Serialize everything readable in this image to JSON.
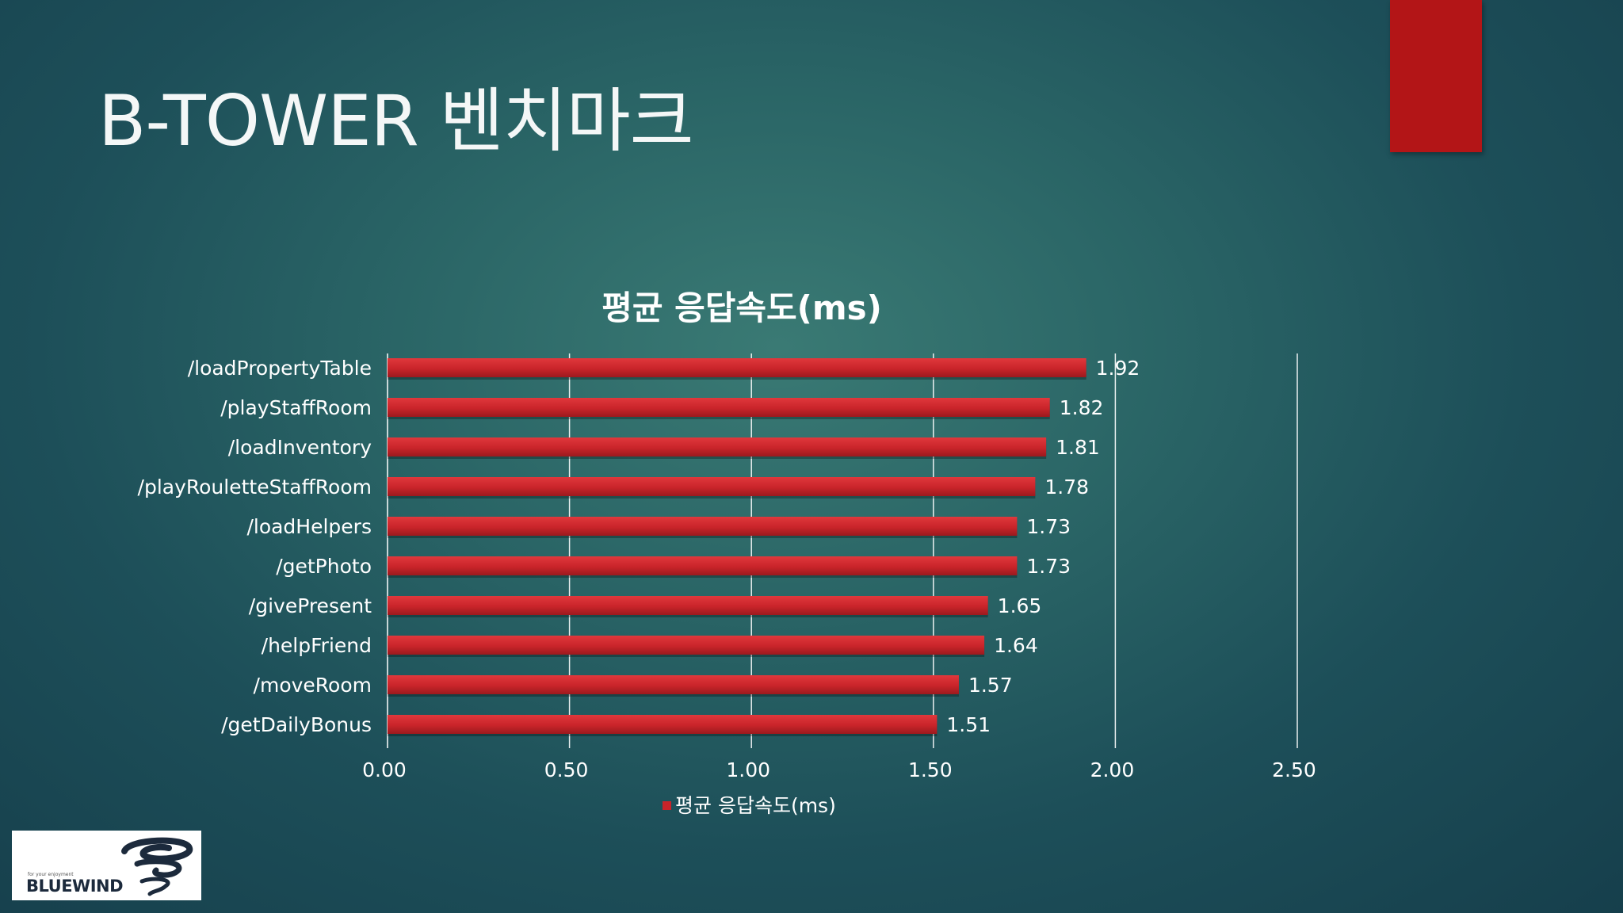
{
  "slide": {
    "title": "B-TOWER 벤치마크"
  },
  "logo": {
    "tagline": "for your enjoyment",
    "name": "BLUEWIND"
  },
  "colors": {
    "bar": "#c9242a",
    "accent": "#b31517",
    "gridline": "#ffffff",
    "text": "#ffffff"
  },
  "chart_data": {
    "type": "bar",
    "orientation": "horizontal",
    "title": "평균 응답속도(ms)",
    "categories": [
      "/loadPropertyTable",
      "/playStaffRoom",
      "/loadInventory",
      "/playRouletteStaffRoom",
      "/loadHelpers",
      "/getPhoto",
      "/givePresent",
      "/helpFriend",
      "/moveRoom",
      "/getDailyBonus"
    ],
    "series": [
      {
        "name": "평균 응답속도(ms)",
        "values": [
          1.92,
          1.82,
          1.81,
          1.78,
          1.73,
          1.73,
          1.65,
          1.64,
          1.57,
          1.51
        ],
        "labels": [
          "1.92",
          "1.82",
          "1.81",
          "1.78",
          "1.73",
          "1.73",
          "1.65",
          "1.64",
          "1.57",
          "1.51"
        ]
      }
    ],
    "xlim": [
      0,
      2.5
    ],
    "xticks": [
      0,
      0.5,
      1.0,
      1.5,
      2.0,
      2.5
    ],
    "xtick_labels": [
      "0.00",
      "0.50",
      "1.00",
      "1.50",
      "2.00",
      "2.50"
    ],
    "grid": true,
    "legend_position": "bottom",
    "legend_label": "평균 응답속도(ms)"
  }
}
